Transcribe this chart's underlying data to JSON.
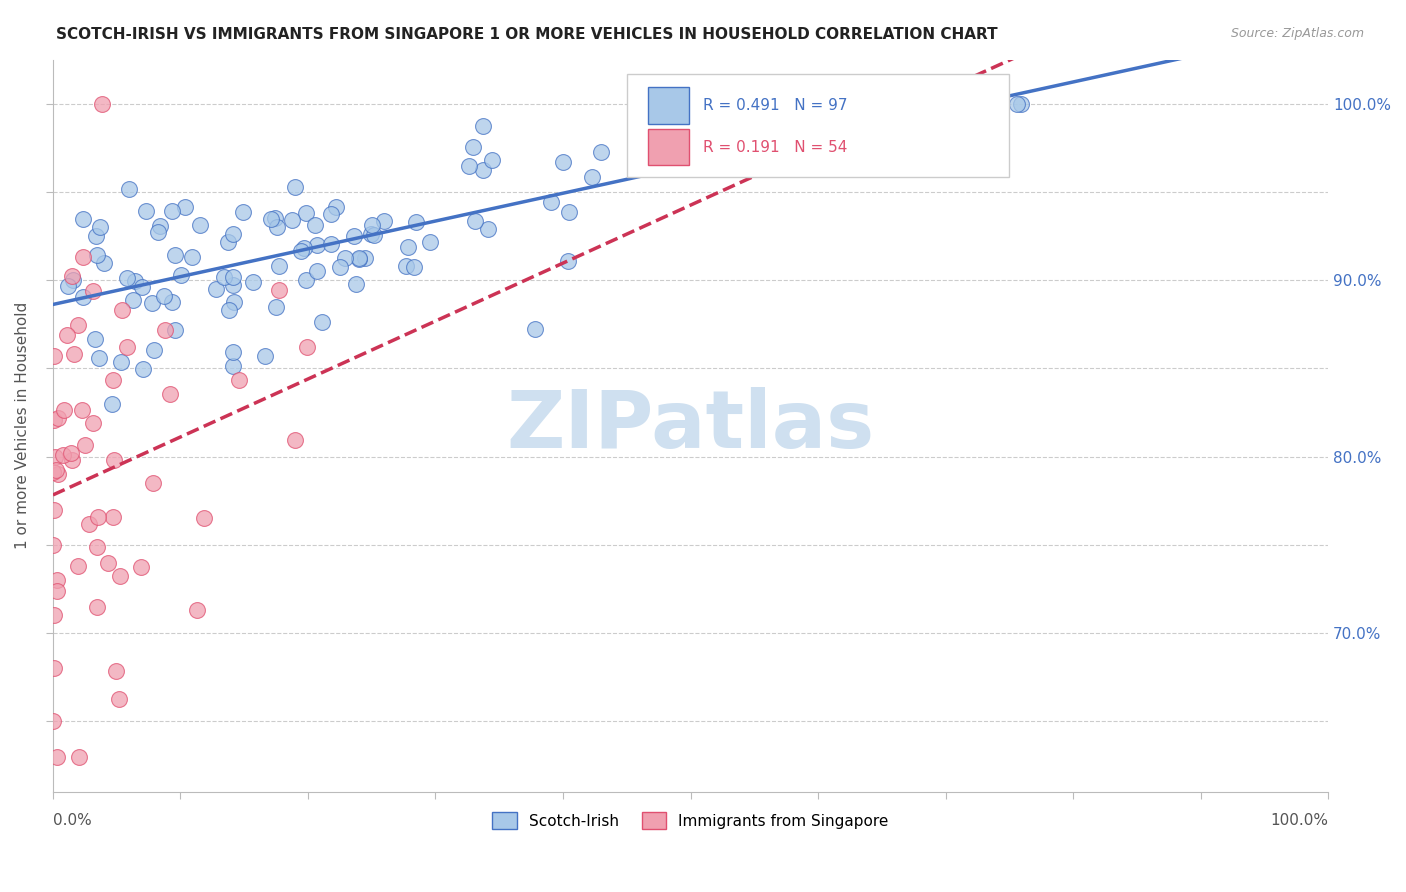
{
  "title": "SCOTCH-IRISH VS IMMIGRANTS FROM SINGAPORE 1 OR MORE VEHICLES IN HOUSEHOLD CORRELATION CHART",
  "source": "Source: ZipAtlas.com",
  "ylabel": "1 or more Vehicles in Household",
  "legend_blue_label": "Scotch-Irish",
  "legend_pink_label": "Immigrants from Singapore",
  "legend_R_blue": "R = 0.491",
  "legend_N_blue": "N = 97",
  "legend_R_pink": "R = 0.191",
  "legend_N_pink": "N = 54",
  "blue_fill": "#a8c8e8",
  "pink_fill": "#f0a0b0",
  "blue_edge": "#4472c4",
  "pink_edge": "#e05070",
  "blue_line": "#4472c4",
  "pink_line": "#cc3355",
  "watermark_color": "#cfe0f0",
  "right_tick_color": "#4472c4",
  "ytick_vals": [
    0.65,
    0.7,
    0.75,
    0.8,
    0.85,
    0.9,
    0.95,
    1.0
  ],
  "right_labels": [
    "",
    "70.0%",
    "",
    "80.0%",
    "",
    "90.0%",
    "",
    "100.0%"
  ],
  "ymin": 0.61,
  "ymax": 1.025
}
